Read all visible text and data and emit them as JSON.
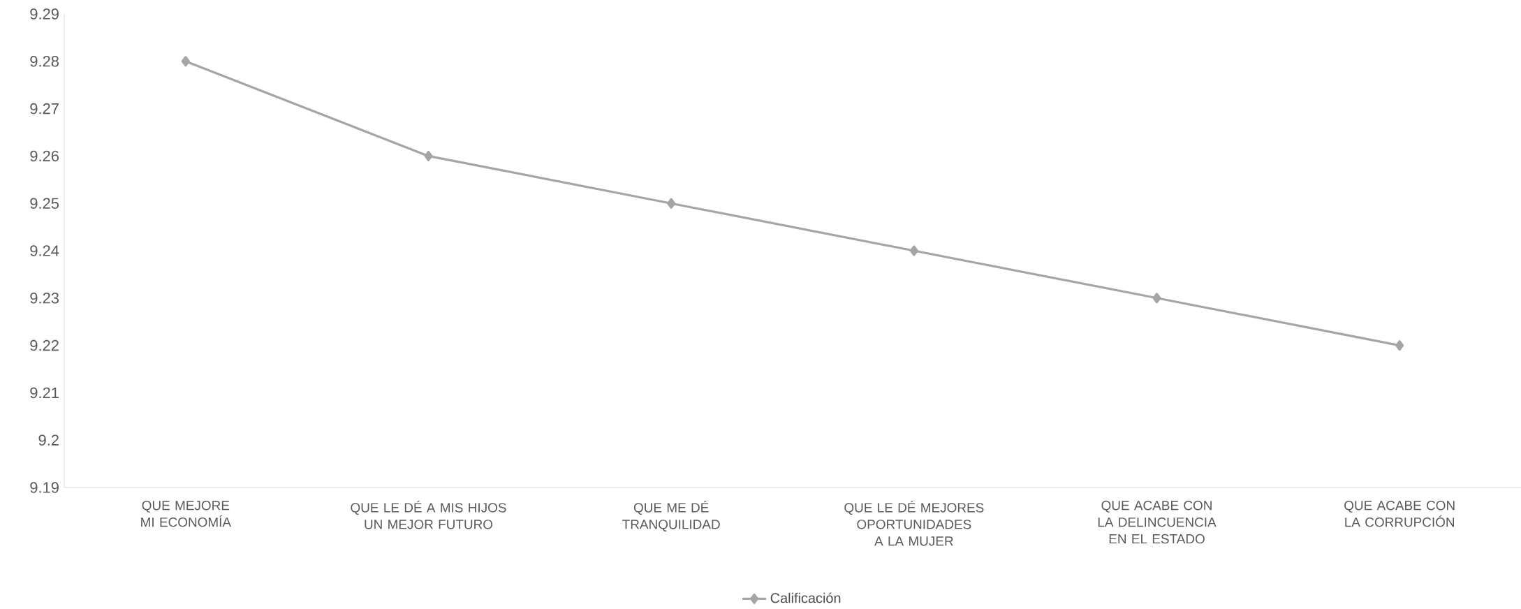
{
  "chart_data": {
    "type": "line",
    "categories": [
      "QUE MEJORE MI ECONOMÍA",
      "QUE LE DÉ A MIS HIJOS UN MEJOR FUTURO",
      "QUE ME DÉ TRANQUILIDAD",
      "QUE LE DÉ MEJORES OPORTUNIDADES A LA MUJER",
      "QUE ACABE CON LA DELINCUENCIA EN EL ESTADO",
      "QUE ACABE CON LA CORRUPCIÓN"
    ],
    "series": [
      {
        "name": "Calificación",
        "color": "#a5a5a5",
        "values": [
          9.28,
          9.26,
          9.25,
          9.24,
          9.23,
          9.22
        ]
      }
    ],
    "ylim": [
      9.19,
      9.29
    ],
    "yticks": [
      9.19,
      9.2,
      9.21,
      9.22,
      9.23,
      9.24,
      9.25,
      9.26,
      9.27,
      9.28,
      9.29
    ],
    "marker": "diamond",
    "line_style": "solid",
    "grid": false,
    "legend": "bottom"
  }
}
